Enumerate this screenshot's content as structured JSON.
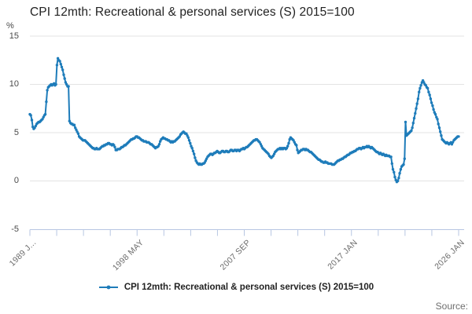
{
  "title": "CPI 12mth: Recreational & personal services (S) 2015=100",
  "y_axis_unit": "%",
  "legend": {
    "label": "CPI 12mth: Recreational & personal services (S) 2015=100"
  },
  "source_label": "Source:",
  "colors": {
    "line": "#1e7cba",
    "grid": "#e3e3e3",
    "axis": "#b7c6e2",
    "title_text": "#222222",
    "y_tick_text": "#4a4a4a",
    "x_tick_text": "#6b6b6b",
    "legend_text": "#222222",
    "source_text": "#6e6e6e"
  },
  "chart_data": {
    "type": "line",
    "title": "CPI 12mth: Recreational & personal services (S) 2015=100",
    "xlabel": "",
    "ylabel": "%",
    "ylim": [
      -5,
      15
    ],
    "y_ticks": [
      15,
      10,
      5,
      0,
      -5
    ],
    "grid": "horizontal",
    "legend_position": "bottom",
    "x_start": "1989 JAN",
    "x_end": "2026 JAN",
    "x_frequency": "monthly",
    "minor_tick_count": 17,
    "x_tick_labels": [
      "1989 J...",
      "1998 MAY",
      "2007 SEP",
      "2017 JAN",
      "2026 JAN"
    ],
    "x_tick_positions": [
      0,
      4,
      8,
      12,
      16
    ],
    "series": [
      {
        "name": "CPI 12mth: Recreational & personal services (S) 2015=100",
        "values": [
          6.9,
          6.8,
          6.3,
          5.6,
          5.4,
          5.5,
          5.7,
          5.9,
          6.0,
          6.1,
          6.1,
          6.2,
          6.3,
          6.4,
          6.6,
          6.8,
          6.9,
          8.2,
          9.4,
          9.7,
          9.8,
          9.9,
          10.0,
          9.9,
          10.0,
          10.1,
          9.9,
          10.0,
          12.0,
          12.7,
          12.5,
          12.4,
          12.1,
          11.8,
          11.5,
          11.0,
          10.6,
          10.2,
          10.0,
          9.8,
          9.8,
          6.2,
          6.0,
          5.9,
          5.9,
          5.8,
          5.8,
          5.5,
          5.3,
          5.1,
          4.9,
          4.6,
          4.5,
          4.4,
          4.3,
          4.2,
          4.2,
          4.2,
          4.1,
          4.0,
          3.9,
          3.8,
          3.7,
          3.6,
          3.5,
          3.4,
          3.4,
          3.3,
          3.3,
          3.4,
          3.3,
          3.3,
          3.3,
          3.4,
          3.5,
          3.6,
          3.6,
          3.7,
          3.7,
          3.8,
          3.8,
          3.9,
          3.9,
          3.8,
          3.8,
          3.7,
          3.8,
          3.7,
          3.5,
          3.2,
          3.2,
          3.3,
          3.3,
          3.3,
          3.4,
          3.5,
          3.5,
          3.6,
          3.7,
          3.7,
          3.8,
          3.9,
          4.0,
          4.1,
          4.2,
          4.3,
          4.3,
          4.4,
          4.4,
          4.5,
          4.6,
          4.6,
          4.5,
          4.5,
          4.4,
          4.3,
          4.2,
          4.2,
          4.1,
          4.1,
          4.1,
          4.0,
          4.0,
          4.0,
          3.9,
          3.8,
          3.8,
          3.7,
          3.6,
          3.5,
          3.4,
          3.5,
          3.5,
          3.6,
          3.8,
          4.1,
          4.3,
          4.4,
          4.5,
          4.4,
          4.4,
          4.3,
          4.3,
          4.2,
          4.2,
          4.1,
          4.0,
          4.1,
          4.0,
          4.1,
          4.1,
          4.2,
          4.3,
          4.4,
          4.5,
          4.6,
          4.8,
          4.9,
          5.0,
          5.1,
          5.0,
          4.9,
          4.9,
          4.7,
          4.5,
          4.2,
          3.9,
          3.6,
          3.4,
          3.1,
          2.8,
          2.4,
          2.1,
          1.9,
          1.8,
          1.7,
          1.8,
          1.7,
          1.7,
          1.8,
          1.8,
          1.9,
          2.1,
          2.3,
          2.5,
          2.6,
          2.7,
          2.8,
          2.8,
          2.7,
          2.8,
          2.9,
          2.9,
          3.0,
          3.1,
          3.0,
          2.9,
          2.9,
          3.0,
          3.1,
          3.1,
          3.0,
          3.0,
          3.1,
          3.1,
          3.0,
          3.0,
          3.1,
          3.2,
          3.2,
          3.1,
          3.1,
          3.2,
          3.2,
          3.1,
          3.2,
          3.2,
          3.1,
          3.2,
          3.3,
          3.3,
          3.4,
          3.3,
          3.4,
          3.5,
          3.5,
          3.6,
          3.7,
          3.8,
          3.9,
          4.0,
          4.1,
          4.2,
          4.2,
          4.3,
          4.3,
          4.2,
          4.1,
          4.0,
          3.8,
          3.6,
          3.4,
          3.3,
          3.2,
          3.1,
          3.0,
          2.9,
          2.8,
          2.6,
          2.5,
          2.4,
          2.5,
          2.6,
          2.8,
          3.0,
          3.1,
          3.2,
          3.3,
          3.3,
          3.4,
          3.3,
          3.4,
          3.3,
          3.4,
          3.4,
          3.3,
          3.4,
          3.6,
          3.9,
          4.3,
          4.5,
          4.4,
          4.3,
          4.2,
          4.0,
          3.8,
          3.7,
          3.2,
          2.9,
          3.0,
          3.1,
          3.2,
          3.2,
          3.3,
          3.3,
          3.2,
          3.3,
          3.2,
          3.2,
          3.1,
          3.0,
          3.0,
          2.9,
          2.8,
          2.7,
          2.6,
          2.5,
          2.4,
          2.3,
          2.2,
          2.2,
          2.1,
          2.0,
          2.0,
          1.9,
          1.9,
          2.0,
          1.9,
          1.9,
          1.8,
          1.8,
          1.8,
          1.8,
          1.7,
          1.7,
          1.7,
          1.8,
          1.9,
          2.0,
          2.1,
          2.1,
          2.2,
          2.2,
          2.3,
          2.3,
          2.4,
          2.5,
          2.5,
          2.6,
          2.7,
          2.7,
          2.8,
          2.9,
          2.9,
          3.0,
          3.0,
          3.1,
          3.1,
          3.2,
          3.3,
          3.3,
          3.4,
          3.4,
          3.3,
          3.4,
          3.5,
          3.4,
          3.5,
          3.5,
          3.6,
          3.5,
          3.6,
          3.5,
          3.4,
          3.5,
          3.4,
          3.3,
          3.2,
          3.1,
          3.0,
          3.0,
          2.9,
          2.8,
          2.9,
          2.8,
          2.7,
          2.8,
          2.7,
          2.6,
          2.7,
          2.6,
          2.6,
          2.6,
          2.5,
          2.5,
          1.8,
          1.2,
          0.9,
          0.4,
          0.1,
          -0.1,
          0.0,
          0.3,
          0.8,
          1.2,
          1.5,
          1.6,
          1.7,
          2.3,
          6.1,
          4.7,
          4.8,
          4.9,
          5.0,
          5.1,
          5.2,
          5.5,
          6.0,
          6.5,
          7.0,
          7.5,
          8.0,
          8.5,
          9.2,
          9.6,
          9.9,
          10.2,
          10.4,
          10.2,
          10.0,
          9.9,
          9.7,
          9.6,
          9.2,
          8.9,
          8.5,
          8.1,
          7.8,
          7.4,
          7.1,
          6.9,
          6.6,
          6.4,
          5.9,
          5.5,
          5.1,
          4.7,
          4.3,
          4.2,
          4.1,
          4.0,
          3.9,
          4.0,
          3.9,
          3.8,
          3.9,
          4.0,
          3.8,
          4.0,
          4.2,
          4.3,
          4.4,
          4.5,
          4.6,
          4.6
        ]
      }
    ]
  }
}
